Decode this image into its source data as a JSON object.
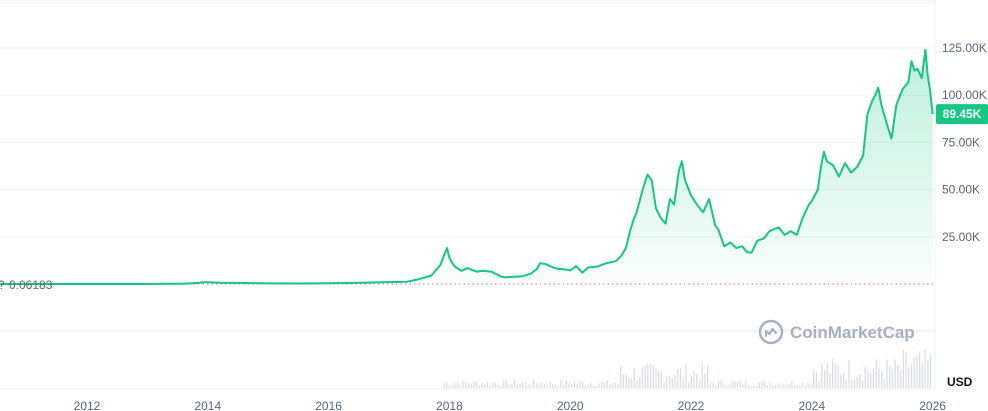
{
  "chart_data": {
    "type": "area",
    "currency_label": "USD",
    "start_value_label": "0.06183",
    "start_value_prefix": "?",
    "current_price_label": "89.45K",
    "watermark": "CoinMarketCap",
    "y_ticks": [
      {
        "value": 25000,
        "label": "25.00K"
      },
      {
        "value": 50000,
        "label": "50.00K"
      },
      {
        "value": 75000,
        "label": "75.00K"
      },
      {
        "value": 100000,
        "label": "100.00K"
      },
      {
        "value": 125000,
        "label": "125.00K"
      }
    ],
    "x_ticks": [
      {
        "value": 2012,
        "label": "2012"
      },
      {
        "value": 2014,
        "label": "2014"
      },
      {
        "value": 2016,
        "label": "2016"
      },
      {
        "value": 2018,
        "label": "2018"
      },
      {
        "value": 2020,
        "label": "2020"
      },
      {
        "value": 2022,
        "label": "2022"
      },
      {
        "value": 2024,
        "label": "2024"
      },
      {
        "value": 2026,
        "label": "2026"
      }
    ],
    "ylim": [
      0,
      150000
    ],
    "xlim": [
      2010.55,
      2026.0
    ],
    "colors": {
      "line": "#16c784",
      "baseline_line": "#ea3943",
      "badge": "#16c784",
      "volume": "#cfd6e4",
      "grid": "#eff2f5",
      "axis_text": "#58667e"
    },
    "series": [
      {
        "x": [
          2010.55,
          2011.0,
          2011.45,
          2012.0,
          2012.5,
          2013.0,
          2013.3,
          2013.6,
          2013.85,
          2013.95,
          2014.2,
          2014.5,
          2015.0,
          2015.5,
          2016.0,
          2016.5,
          2017.0,
          2017.3,
          2017.5,
          2017.7,
          2017.85,
          2017.92,
          2017.96,
          2018.0,
          2018.05,
          2018.1,
          2018.2,
          2018.3,
          2018.45,
          2018.55,
          2018.7,
          2018.85,
          2018.92,
          2019.0,
          2019.2,
          2019.35,
          2019.45,
          2019.5,
          2019.6,
          2019.7,
          2019.8,
          2019.95,
          2020.0,
          2020.1,
          2020.2,
          2020.3,
          2020.45,
          2020.6,
          2020.75,
          2020.85,
          2020.92,
          2021.0,
          2021.05,
          2021.1,
          2021.2,
          2021.28,
          2021.35,
          2021.42,
          2021.5,
          2021.58,
          2021.65,
          2021.72,
          2021.8,
          2021.85,
          2021.9,
          2022.0,
          2022.1,
          2022.2,
          2022.3,
          2022.4,
          2022.45,
          2022.55,
          2022.65,
          2022.75,
          2022.85,
          2022.92,
          2023.0,
          2023.1,
          2023.2,
          2023.3,
          2023.45,
          2023.55,
          2023.65,
          2023.75,
          2023.85,
          2023.95,
          2024.0,
          2024.1,
          2024.15,
          2024.2,
          2024.25,
          2024.35,
          2024.45,
          2024.55,
          2024.65,
          2024.75,
          2024.85,
          2024.92,
          2025.0,
          2025.05,
          2025.1,
          2025.15,
          2025.25,
          2025.32,
          2025.4,
          2025.5,
          2025.6,
          2025.65,
          2025.7,
          2025.75,
          2025.82,
          2025.88,
          2025.92,
          2025.96,
          2026.0
        ],
        "values": [
          0.06,
          1,
          5,
          5,
          10,
          20,
          140,
          130,
          600,
          1000,
          700,
          600,
          300,
          250,
          430,
          650,
          1000,
          1200,
          2600,
          4500,
          10000,
          16000,
          19000,
          14000,
          11000,
          9000,
          7000,
          8500,
          6500,
          7000,
          6500,
          4000,
          3500,
          3700,
          4000,
          5500,
          8000,
          11000,
          10500,
          9000,
          8000,
          7500,
          7200,
          9500,
          6000,
          8800,
          9200,
          11000,
          12000,
          15000,
          19000,
          29000,
          34000,
          38000,
          50000,
          58000,
          55000,
          40000,
          35000,
          32000,
          45000,
          42000,
          60000,
          65000,
          55000,
          47000,
          42000,
          38000,
          45000,
          31000,
          29000,
          20000,
          22000,
          19000,
          20000,
          17000,
          16500,
          23000,
          24000,
          28000,
          30000,
          26000,
          28000,
          26000,
          35000,
          42000,
          44000,
          50000,
          62000,
          70000,
          65000,
          63000,
          57000,
          64000,
          59000,
          62000,
          68000,
          90000,
          97000,
          100000,
          104000,
          95000,
          84000,
          77000,
          95000,
          103000,
          107000,
          118000,
          113000,
          114000,
          109000,
          124000,
          110000,
          102000,
          90000
        ]
      }
    ]
  }
}
